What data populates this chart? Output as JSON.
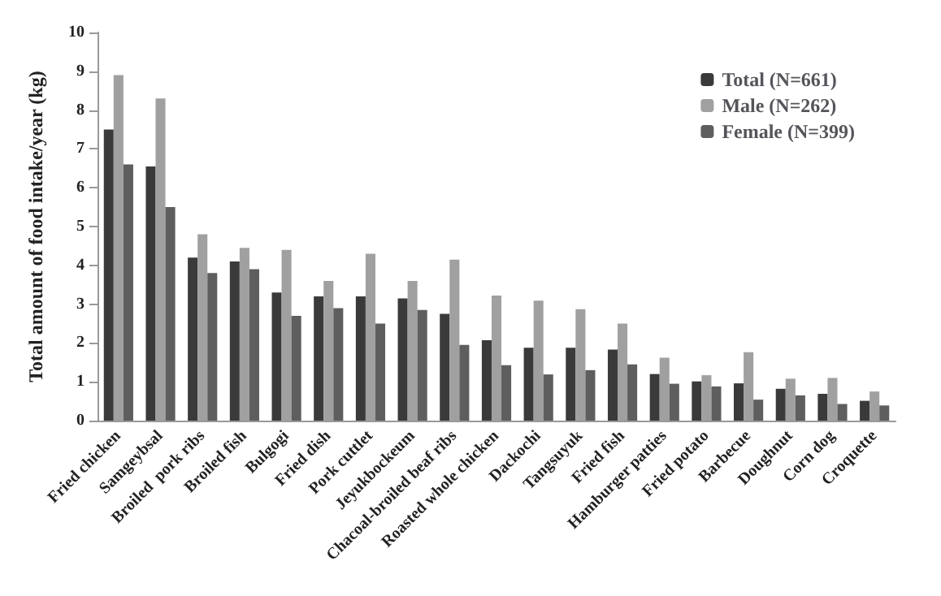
{
  "chart_data": {
    "type": "bar",
    "ylabel": "Total amount of food intake/year (kg)",
    "categories": [
      "Fried chicken",
      "Samgeybsal",
      "Broiled  pork ribs",
      "Broiled fish",
      "Bulgogi",
      "Fried dish",
      "Pork cuttlet",
      "Jeyukbockeum",
      "Chacoal-broiled beaf ribs",
      "Roasted whole chicken",
      "Dackochi",
      "Tangsuyuk",
      "Fried fish",
      "Hamburger patties",
      "Fried potato",
      "Barbecue",
      "Doughnut",
      "Corn dog",
      "Croquette"
    ],
    "series": [
      {
        "name": "Total (N=661)",
        "color": "#3a3a3a",
        "values": [
          7.5,
          6.55,
          4.2,
          4.1,
          3.3,
          3.2,
          3.2,
          3.15,
          2.75,
          2.07,
          1.88,
          1.88,
          1.83,
          1.2,
          1.01,
          0.96,
          0.82,
          0.69,
          0.51
        ]
      },
      {
        "name": "Male (N=262)",
        "color": "#a0a0a0",
        "values": [
          8.9,
          8.3,
          4.8,
          4.45,
          4.4,
          3.6,
          4.3,
          3.6,
          4.15,
          3.22,
          3.09,
          2.87,
          2.5,
          1.62,
          1.17,
          1.76,
          1.08,
          1.1,
          0.75
        ]
      },
      {
        "name": "Female (N=399)",
        "color": "#5e5e5e",
        "values": [
          6.6,
          5.5,
          3.8,
          3.9,
          2.7,
          2.9,
          2.5,
          2.85,
          1.95,
          1.43,
          1.19,
          1.3,
          1.45,
          0.95,
          0.88,
          0.54,
          0.65,
          0.43,
          0.39
        ]
      }
    ],
    "ylim": [
      0,
      10
    ],
    "yticks": [
      0,
      1,
      2,
      3,
      4,
      5,
      6,
      7,
      8,
      9,
      10
    ],
    "grid": false,
    "legend": "top right"
  }
}
